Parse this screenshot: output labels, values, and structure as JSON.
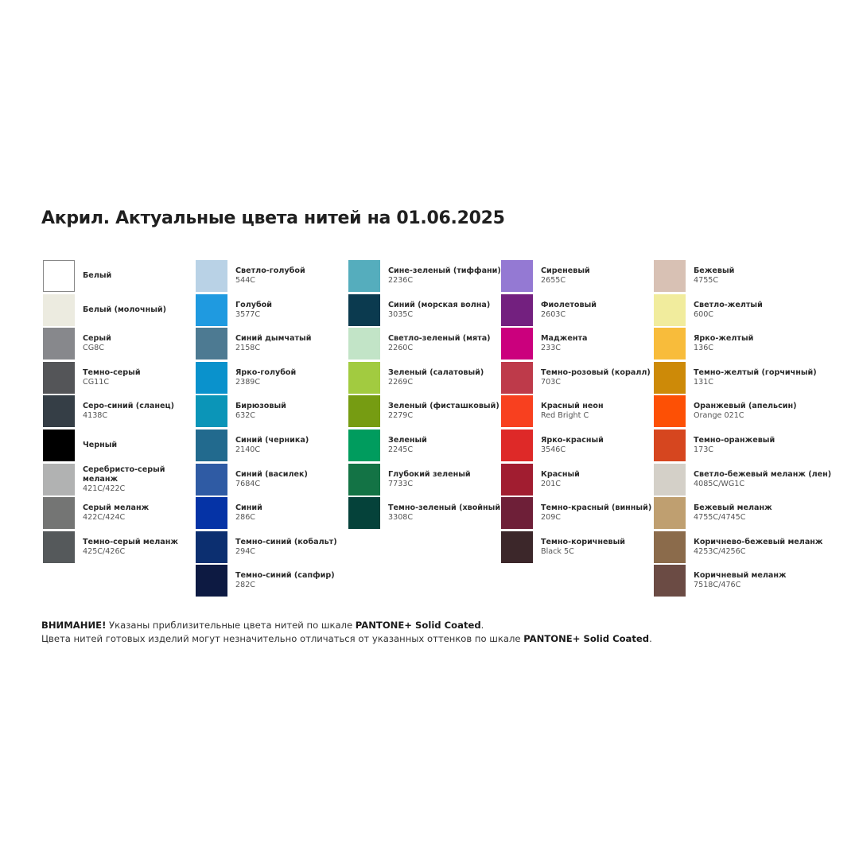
{
  "title": "Акрил. Актуальные цвета нитей на 01.06.2025",
  "columns": [
    [
      {
        "name": "Белый",
        "code": "",
        "color": "#ffffff",
        "border": true
      },
      {
        "name": "Белый (молочный)",
        "code": "",
        "color": "#ecebe0"
      },
      {
        "name": "Серый",
        "code": "CG8C",
        "color": "#87888c"
      },
      {
        "name": "Темно-серый",
        "code": "CG11C",
        "color": "#545558"
      },
      {
        "name": "Серо-синий (сланец)",
        "code": "4138C",
        "color": "#353e46"
      },
      {
        "name": "Черный",
        "code": "",
        "color": "#000000"
      },
      {
        "name": "Серебристо-серый меланж",
        "code": "421C/422C",
        "color": "#b1b2b2"
      },
      {
        "name": "Серый меланж",
        "code": "422C/424C",
        "color": "#747574"
      },
      {
        "name": "Темно-серый меланж",
        "code": "425C/426C",
        "color": "#55595b"
      }
    ],
    [
      {
        "name": "Светло-голубой",
        "code": "544C",
        "color": "#b9d2e6"
      },
      {
        "name": "Голубой",
        "code": "3577C",
        "color": "#1f9ae0"
      },
      {
        "name": "Синий дымчатый",
        "code": "2158C",
        "color": "#4d7a92"
      },
      {
        "name": "Ярко-голубой",
        "code": "2389C",
        "color": "#0a92cc"
      },
      {
        "name": "Бирюзовый",
        "code": "632C",
        "color": "#0b95b8"
      },
      {
        "name": "Синий (черника)",
        "code": "2140C",
        "color": "#226a8e"
      },
      {
        "name": "Синий (василек)",
        "code": "7684C",
        "color": "#2f5ba4"
      },
      {
        "name": "Синий",
        "code": "286C",
        "color": "#0533a6"
      },
      {
        "name": "Темно-синий (кобальт)",
        "code": "294C",
        "color": "#0c2f70"
      },
      {
        "name": "Темно-синий (сапфир)",
        "code": "282C",
        "color": "#0d1a42"
      }
    ],
    [
      {
        "name": "Сине-зеленый (тиффани)",
        "code": "2236C",
        "color": "#55adbd"
      },
      {
        "name": "Синий (морская волна)",
        "code": "3035C",
        "color": "#0b3a4f"
      },
      {
        "name": "Светло-зеленый (мята)",
        "code": "2260C",
        "color": "#c2e4c7"
      },
      {
        "name": "Зеленый (салатовый)",
        "code": "2269C",
        "color": "#a2cb40"
      },
      {
        "name": "Зеленый (фисташковый)",
        "code": "2279C",
        "color": "#769c12"
      },
      {
        "name": "Зеленый",
        "code": "2245C",
        "color": "#009c5e"
      },
      {
        "name": "Глубокий зеленый",
        "code": "7733C",
        "color": "#137345"
      },
      {
        "name": "Темно-зеленый (хвойный)",
        "code": "3308C",
        "color": "#05423a"
      }
    ],
    [
      {
        "name": "Сиреневый",
        "code": "2655C",
        "color": "#9479d3"
      },
      {
        "name": "Фиолетовый",
        "code": "2603C",
        "color": "#73207f"
      },
      {
        "name": "Маджента",
        "code": "233C",
        "color": "#cb007d"
      },
      {
        "name": "Темно-розовый (коралл)",
        "code": "703C",
        "color": "#be3a4a"
      },
      {
        "name": "Красный неон",
        "code": "Red Bright C",
        "color": "#f8401f"
      },
      {
        "name": "Ярко-красный",
        "code": "3546C",
        "color": "#de2928"
      },
      {
        "name": "Красный",
        "code": "201C",
        "color": "#a11d30"
      },
      {
        "name": "Темно-красный (винный)",
        "code": "209C",
        "color": "#6e1f38"
      },
      {
        "name": "Темно-коричневый",
        "code": "Black 5C",
        "color": "#3c272a"
      }
    ],
    [
      {
        "name": "Бежевый",
        "code": "4755C",
        "color": "#d8c1b4"
      },
      {
        "name": "Светло-желтый",
        "code": "600C",
        "color": "#f1ec9d"
      },
      {
        "name": "Ярко-желтый",
        "code": "136C",
        "color": "#f8bc3b"
      },
      {
        "name": "Темно-желтый (горчичный)",
        "code": "131C",
        "color": "#cd8a08"
      },
      {
        "name": "Оранжевый (апельсин)",
        "code": "Orange 021C",
        "color": "#fd5005"
      },
      {
        "name": "Темно-оранжевый",
        "code": "173C",
        "color": "#d6461f"
      },
      {
        "name": "Светло-бежевый меланж (лен)",
        "code": "4085C/WG1C",
        "color": "#d4d0c8"
      },
      {
        "name": "Бежевый меланж",
        "code": "4755C/4745C",
        "color": "#bf9f70"
      },
      {
        "name": "Коричнево-бежевый меланж",
        "code": "4253C/4256C",
        "color": "#8b6b4b"
      },
      {
        "name": "Коричневый меланж",
        "code": "7518C/476C",
        "color": "#6b4b44"
      }
    ]
  ],
  "notice": {
    "line1": [
      {
        "text": "ВНИМАНИЕ!",
        "bold": true
      },
      {
        "text": " Указаны приблизительные цвета нитей по шкале ",
        "bold": false
      },
      {
        "text": "PANTONE+ Solid Coated",
        "bold": true
      },
      {
        "text": ".",
        "bold": false
      }
    ],
    "line2": [
      {
        "text": "Цвета нитей готовых изделий могут незначительно отличаться от указанных оттенков по шкале ",
        "bold": false
      },
      {
        "text": "PANTONE+ Solid Coated",
        "bold": true
      },
      {
        "text": ".",
        "bold": false
      }
    ]
  }
}
